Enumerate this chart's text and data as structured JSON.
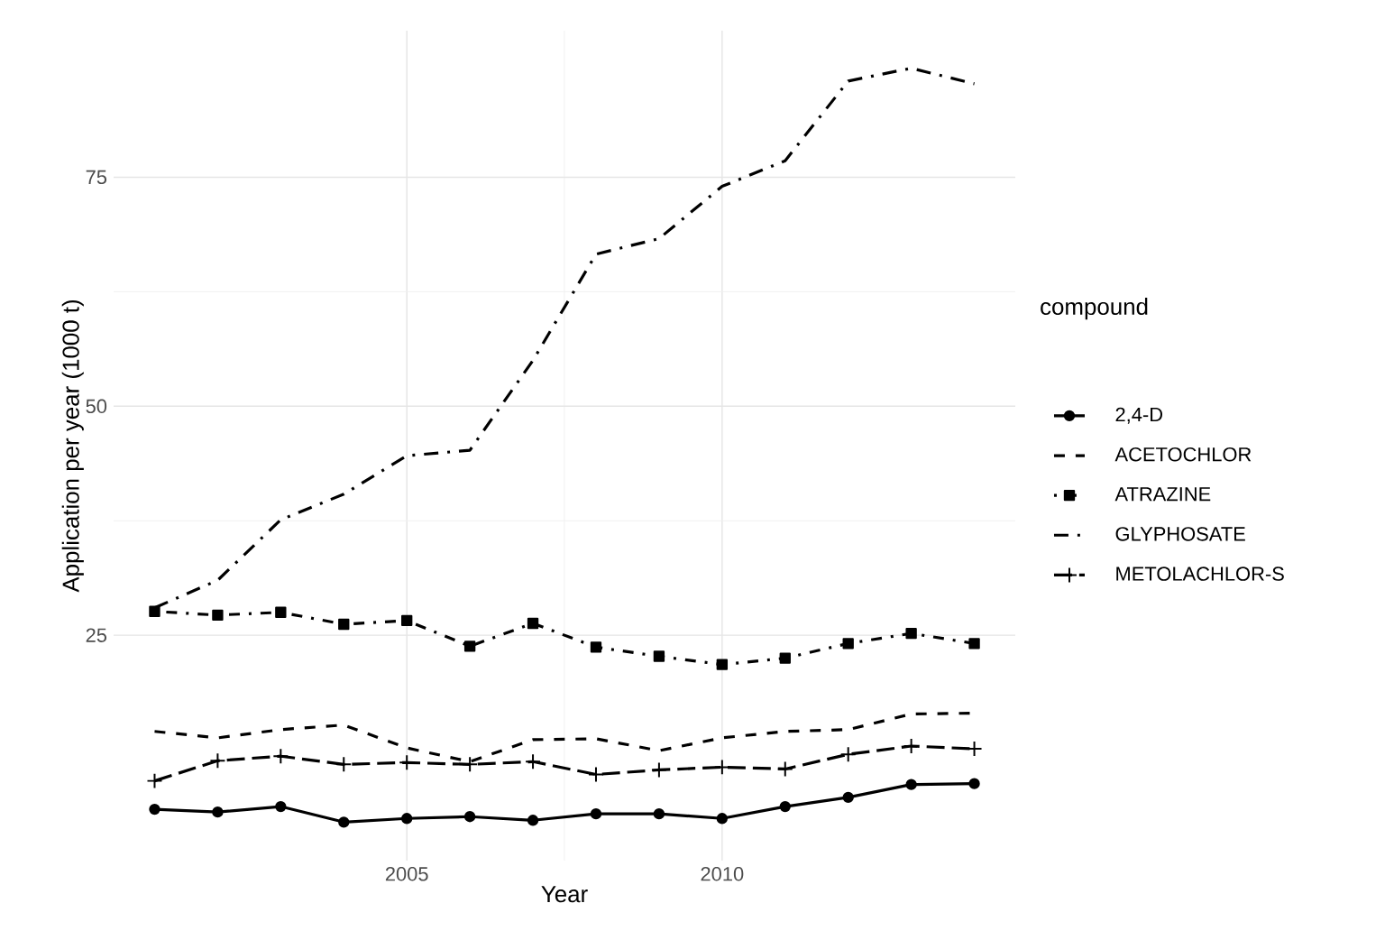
{
  "chart_data": {
    "type": "line",
    "xlabel": "Year",
    "ylabel": "Application per year (1000 t)",
    "legend_title": "compound",
    "x": [
      2001,
      2002,
      2003,
      2004,
      2005,
      2006,
      2007,
      2008,
      2009,
      2010,
      2011,
      2012,
      2013,
      2014
    ],
    "xlim": [
      2000.35,
      2014.65
    ],
    "ylim": [
      0.4,
      91
    ],
    "xticks": [
      2005,
      2010
    ],
    "yticks": [
      25,
      50,
      75
    ],
    "grid": true,
    "legend": "right",
    "series": [
      {
        "name": "2,4-D",
        "color": "#000000",
        "marker": "circle",
        "line_style": "solid",
        "values": [
          6.0,
          5.7,
          6.3,
          4.6,
          5.0,
          5.2,
          4.8,
          5.5,
          5.5,
          5.0,
          6.3,
          7.3,
          8.7,
          8.8
        ]
      },
      {
        "name": "ACETOCHLOR",
        "color": "#000000",
        "marker": "none",
        "line_style": "dashed",
        "values": [
          14.5,
          13.8,
          14.7,
          15.2,
          12.7,
          11.2,
          13.6,
          13.7,
          12.4,
          13.8,
          14.5,
          14.7,
          16.4,
          16.5
        ]
      },
      {
        "name": "ATRAZINE",
        "color": "#000000",
        "marker": "square",
        "line_style": "dotted",
        "values": [
          27.6,
          27.2,
          27.5,
          26.2,
          26.6,
          23.8,
          26.3,
          23.7,
          22.7,
          21.8,
          22.5,
          24.1,
          25.2,
          24.1
        ]
      },
      {
        "name": "GLYPHOSATE",
        "color": "#000000",
        "marker": "none",
        "line_style": "dashdot",
        "values": [
          28.0,
          31.0,
          37.6,
          40.4,
          44.6,
          45.2,
          55.0,
          66.6,
          68.3,
          74.0,
          76.8,
          85.5,
          86.9,
          85.2
        ]
      },
      {
        "name": "METOLACHLOR-S",
        "color": "#000000",
        "marker": "cross",
        "line_style": "longdash",
        "values": [
          9.1,
          11.3,
          11.8,
          10.9,
          11.1,
          10.9,
          11.2,
          9.8,
          10.3,
          10.6,
          10.4,
          12.0,
          12.9,
          12.6
        ]
      }
    ]
  }
}
